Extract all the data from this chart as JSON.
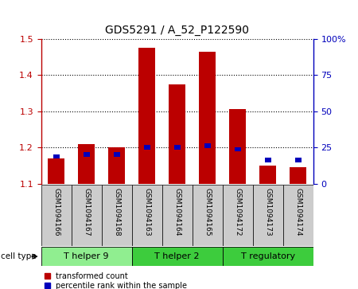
{
  "title": "GDS5291 / A_52_P122590",
  "samples": [
    "GSM1094166",
    "GSM1094167",
    "GSM1094168",
    "GSM1094163",
    "GSM1094164",
    "GSM1094165",
    "GSM1094172",
    "GSM1094173",
    "GSM1094174"
  ],
  "red_values": [
    1.17,
    1.21,
    1.2,
    1.475,
    1.375,
    1.465,
    1.305,
    1.15,
    1.145
  ],
  "blue_values": [
    1.175,
    1.18,
    1.18,
    1.2,
    1.2,
    1.205,
    1.195,
    1.165,
    1.165
  ],
  "ylim": [
    1.1,
    1.5
  ],
  "yticks_left": [
    1.1,
    1.2,
    1.3,
    1.4,
    1.5
  ],
  "yticks_right": [
    0,
    25,
    50,
    75,
    100
  ],
  "y_right_labels": [
    "0",
    "25",
    "50",
    "75",
    "100%"
  ],
  "cell_groups": [
    {
      "label": "T helper 9",
      "start": 0,
      "end": 3,
      "color": "#90ee90"
    },
    {
      "label": "T helper 2",
      "start": 3,
      "end": 6,
      "color": "#3dcc3d"
    },
    {
      "label": "T regulatory",
      "start": 6,
      "end": 9,
      "color": "#3dcc3d"
    }
  ],
  "red_color": "#bb0000",
  "blue_color": "#0000bb",
  "bar_width": 0.55,
  "blue_bar_width": 0.22,
  "blue_bar_height": 0.012,
  "grid_color": "#000000",
  "label_box_color": "#cccccc",
  "label_transformed": "transformed count",
  "label_percentile": "percentile rank within the sample",
  "title_fontsize": 10,
  "tick_fontsize": 8,
  "label_fontsize": 6.5,
  "group_fontsize": 8,
  "legend_fontsize": 7
}
